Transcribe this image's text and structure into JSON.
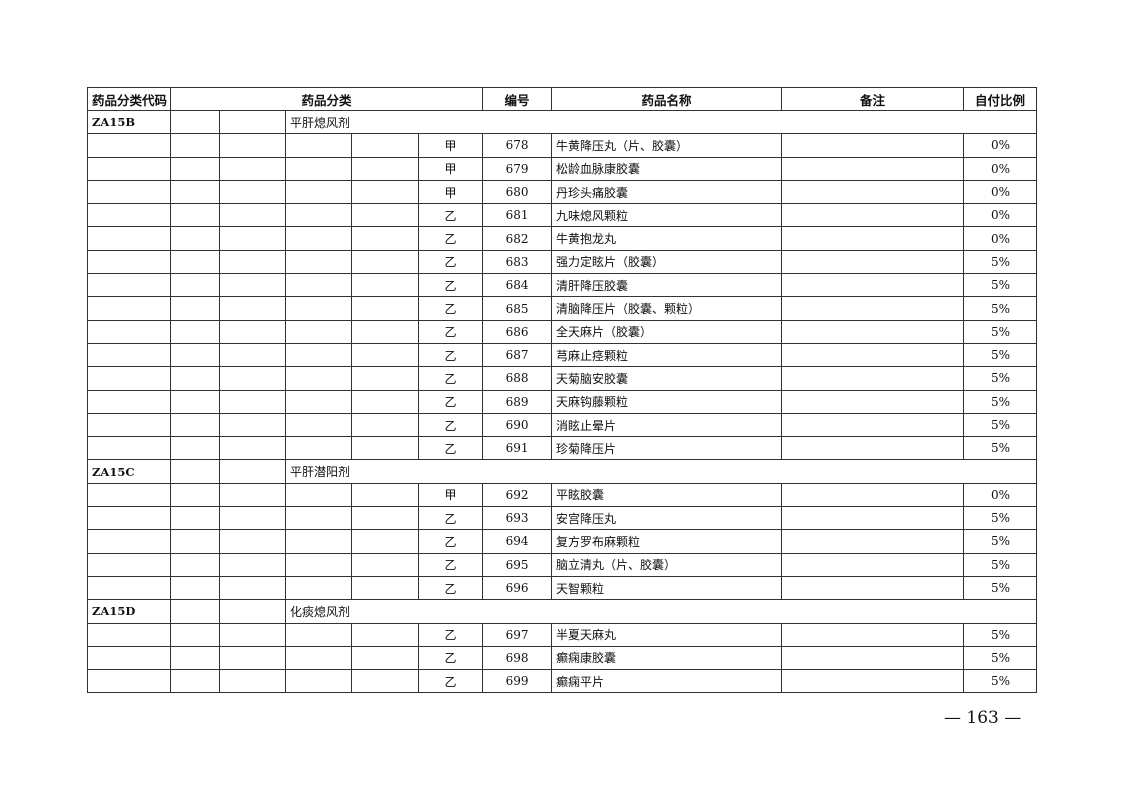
{
  "header": {
    "code": "药品分类代码",
    "category": "药品分类",
    "number": "编号",
    "name": "药品名称",
    "remark": "备注",
    "ratio": "自付比例"
  },
  "groups": [
    {
      "code": "ZA15B",
      "category": "平肝熄风剂",
      "items": [
        {
          "grade": "甲",
          "number": "678",
          "name": "牛黄降压丸（片、胶囊）",
          "ratio": "0%"
        },
        {
          "grade": "甲",
          "number": "679",
          "name": "松龄血脉康胶囊",
          "ratio": "0%"
        },
        {
          "grade": "甲",
          "number": "680",
          "name": "丹珍头痛胶囊",
          "ratio": "0%"
        },
        {
          "grade": "乙",
          "number": "681",
          "name": "九味熄风颗粒",
          "ratio": "0%"
        },
        {
          "grade": "乙",
          "number": "682",
          "name": "牛黄抱龙丸",
          "ratio": "0%"
        },
        {
          "grade": "乙",
          "number": "683",
          "name": "强力定眩片（胶囊）",
          "ratio": "5%"
        },
        {
          "grade": "乙",
          "number": "684",
          "name": "清肝降压胶囊",
          "ratio": "5%"
        },
        {
          "grade": "乙",
          "number": "685",
          "name": "清脑降压片（胶囊、颗粒）",
          "ratio": "5%"
        },
        {
          "grade": "乙",
          "number": "686",
          "name": "全天麻片（胶囊）",
          "ratio": "5%"
        },
        {
          "grade": "乙",
          "number": "687",
          "name": "芎麻止痉颗粒",
          "ratio": "5%"
        },
        {
          "grade": "乙",
          "number": "688",
          "name": "天菊脑安胶囊",
          "ratio": "5%"
        },
        {
          "grade": "乙",
          "number": "689",
          "name": "天麻钩藤颗粒",
          "ratio": "5%"
        },
        {
          "grade": "乙",
          "number": "690",
          "name": "消眩止晕片",
          "ratio": "5%"
        },
        {
          "grade": "乙",
          "number": "691",
          "name": "珍菊降压片",
          "ratio": "5%"
        }
      ]
    },
    {
      "code": "ZA15C",
      "category": "平肝潜阳剂",
      "items": [
        {
          "grade": "甲",
          "number": "692",
          "name": "平眩胶囊",
          "ratio": "0%"
        },
        {
          "grade": "乙",
          "number": "693",
          "name": "安宫降压丸",
          "ratio": "5%"
        },
        {
          "grade": "乙",
          "number": "694",
          "name": "复方罗布麻颗粒",
          "ratio": "5%"
        },
        {
          "grade": "乙",
          "number": "695",
          "name": "脑立清丸（片、胶囊）",
          "ratio": "5%"
        },
        {
          "grade": "乙",
          "number": "696",
          "name": "天智颗粒",
          "ratio": "5%"
        }
      ]
    },
    {
      "code": "ZA15D",
      "category": "化痰熄风剂",
      "items": [
        {
          "grade": "乙",
          "number": "697",
          "name": "半夏天麻丸",
          "ratio": "5%"
        },
        {
          "grade": "乙",
          "number": "698",
          "name": "癫痫康胶囊",
          "ratio": "5%"
        },
        {
          "grade": "乙",
          "number": "699",
          "name": "癫痫平片",
          "ratio": "5%"
        }
      ]
    }
  ],
  "page_number": "— 163 —"
}
